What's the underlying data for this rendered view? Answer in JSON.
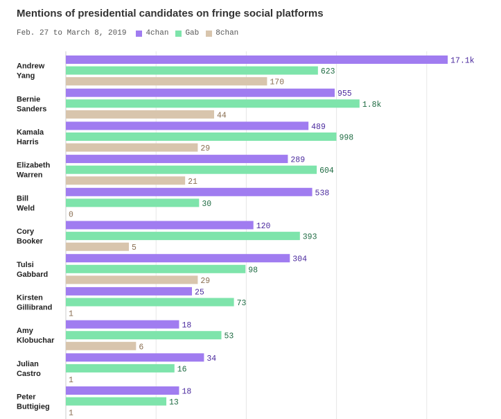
{
  "chart_data": {
    "type": "bar",
    "orientation": "horizontal",
    "title": "Mentions of presidential candidates on fringe social platforms",
    "subtitle": "Feb. 27 to March 8, 2019",
    "categories": [
      [
        "Andrew",
        "Yang"
      ],
      [
        "Bernie",
        "Sanders"
      ],
      [
        "Kamala",
        "Harris"
      ],
      [
        "Elizabeth",
        "Warren"
      ],
      [
        "Bill",
        "Weld"
      ],
      [
        "Cory",
        "Booker"
      ],
      [
        "Tulsi",
        "Gabbard"
      ],
      [
        "Kirsten",
        "Gillibrand"
      ],
      [
        "Amy",
        "Klobuchar"
      ],
      [
        "Julian",
        "Castro"
      ],
      [
        "Peter",
        "Buttigieg"
      ]
    ],
    "series": [
      {
        "name": "4chan",
        "color": "#a07cf0",
        "label_color": "#4b2a9e",
        "values": [
          17100,
          955,
          489,
          289,
          538,
          120,
          304,
          25,
          18,
          34,
          18
        ],
        "labels": [
          "17.1k",
          "955",
          "489",
          "289",
          "538",
          "120",
          "304",
          "25",
          "18",
          "34",
          "18"
        ]
      },
      {
        "name": "Gab",
        "color": "#7ee4ab",
        "label_color": "#1e6b42",
        "values": [
          623,
          1800,
          998,
          604,
          30,
          393,
          98,
          73,
          53,
          16,
          13
        ],
        "labels": [
          "623",
          "1.8k",
          "998",
          "604",
          "30",
          "393",
          "98",
          "73",
          "53",
          "16",
          "13"
        ]
      },
      {
        "name": "8chan",
        "color": "#d8c5ad",
        "label_color": "#8a6f52",
        "values": [
          170,
          44,
          29,
          21,
          0,
          5,
          29,
          1,
          6,
          1,
          1
        ],
        "labels": [
          "170",
          "44",
          "29",
          "21",
          "0",
          "5",
          "29",
          "1",
          "6",
          "1",
          "1"
        ]
      }
    ],
    "xscale": "log",
    "xlim": [
      1,
      20000
    ],
    "gridlines": [
      10,
      100,
      1000,
      10000
    ],
    "grid": true,
    "legend": "top-left"
  }
}
